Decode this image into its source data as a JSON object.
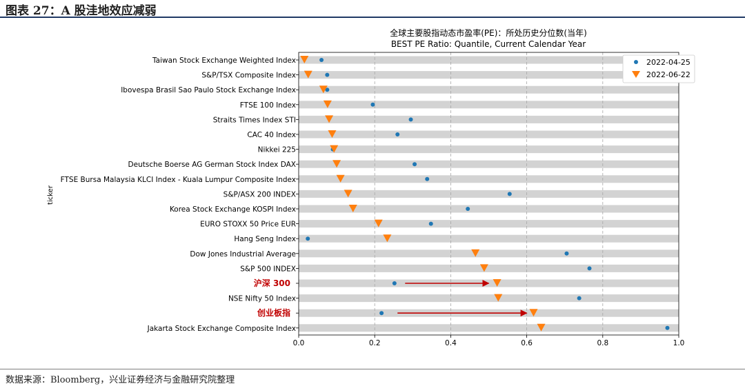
{
  "figure_title": "图表 27：A 股洼地效应减弱",
  "source": "数据来源：Bloomberg，兴业证券经济与金融研究院整理",
  "colors": {
    "series1": "#1f77b4",
    "series2": "#ff7f0e",
    "band": "#d3d3d3",
    "highlight": "#c00000",
    "arrow": "#c00000"
  },
  "chart_data": {
    "type": "scatter",
    "title": "全球主要股指动态市盈率(PE)：所处历史分位数(当年)",
    "subtitle": "BEST PE Ratio: Quantile, Current Calendar Year",
    "xlabel": "",
    "ylabel": "ticker",
    "xlim": [
      0.0,
      1.0
    ],
    "xticks": [
      "0.0",
      "0.2",
      "0.4",
      "0.6",
      "0.8",
      "1.0"
    ],
    "grid": "vertical dashed",
    "legend_position": "top-right",
    "categories": [
      "Taiwan Stock Exchange Weighted Index",
      "S&P/TSX Composite Index",
      "Ibovespa Brasil Sao Paulo Stock Exchange Index",
      "FTSE 100 Index",
      "Straits Times Index STI",
      "CAC 40 Index",
      "Nikkei 225",
      "Deutsche Boerse AG German Stock Index DAX",
      "FTSE Bursa Malaysia KLCI Index - Kuala Lumpur Composite Index",
      "S&P/ASX 200 INDEX",
      "Korea Stock Exchange KOSPI Index",
      "EURO STOXX 50 Price EUR",
      "Hang Seng Index",
      "Dow Jones Industrial Average",
      "S&P 500 INDEX",
      "沪深 300",
      "NSE Nifty 50 Index",
      "创业板指",
      "Jakarta Stock Exchange Composite Index"
    ],
    "highlighted_categories": [
      "沪深 300",
      "创业板指"
    ],
    "series": [
      {
        "name": "2022-04-25",
        "marker": "circle",
        "values": [
          0.06,
          0.075,
          0.075,
          0.195,
          0.295,
          0.26,
          0.09,
          0.305,
          0.338,
          0.555,
          0.445,
          0.348,
          0.024,
          0.705,
          0.765,
          0.252,
          0.738,
          0.218,
          0.97
        ]
      },
      {
        "name": "2022-06-22",
        "marker": "triangle-down",
        "values": [
          0.015,
          0.025,
          0.065,
          0.076,
          0.08,
          0.088,
          0.093,
          0.1,
          0.11,
          0.13,
          0.143,
          0.21,
          0.233,
          0.465,
          0.488,
          0.522,
          0.525,
          0.618,
          0.638
        ]
      }
    ],
    "annotations": [
      {
        "type": "arrow",
        "category": "沪深 300",
        "from": 0.28,
        "to": 0.5
      },
      {
        "type": "arrow",
        "category": "创业板指",
        "from": 0.26,
        "to": 0.6
      }
    ]
  }
}
